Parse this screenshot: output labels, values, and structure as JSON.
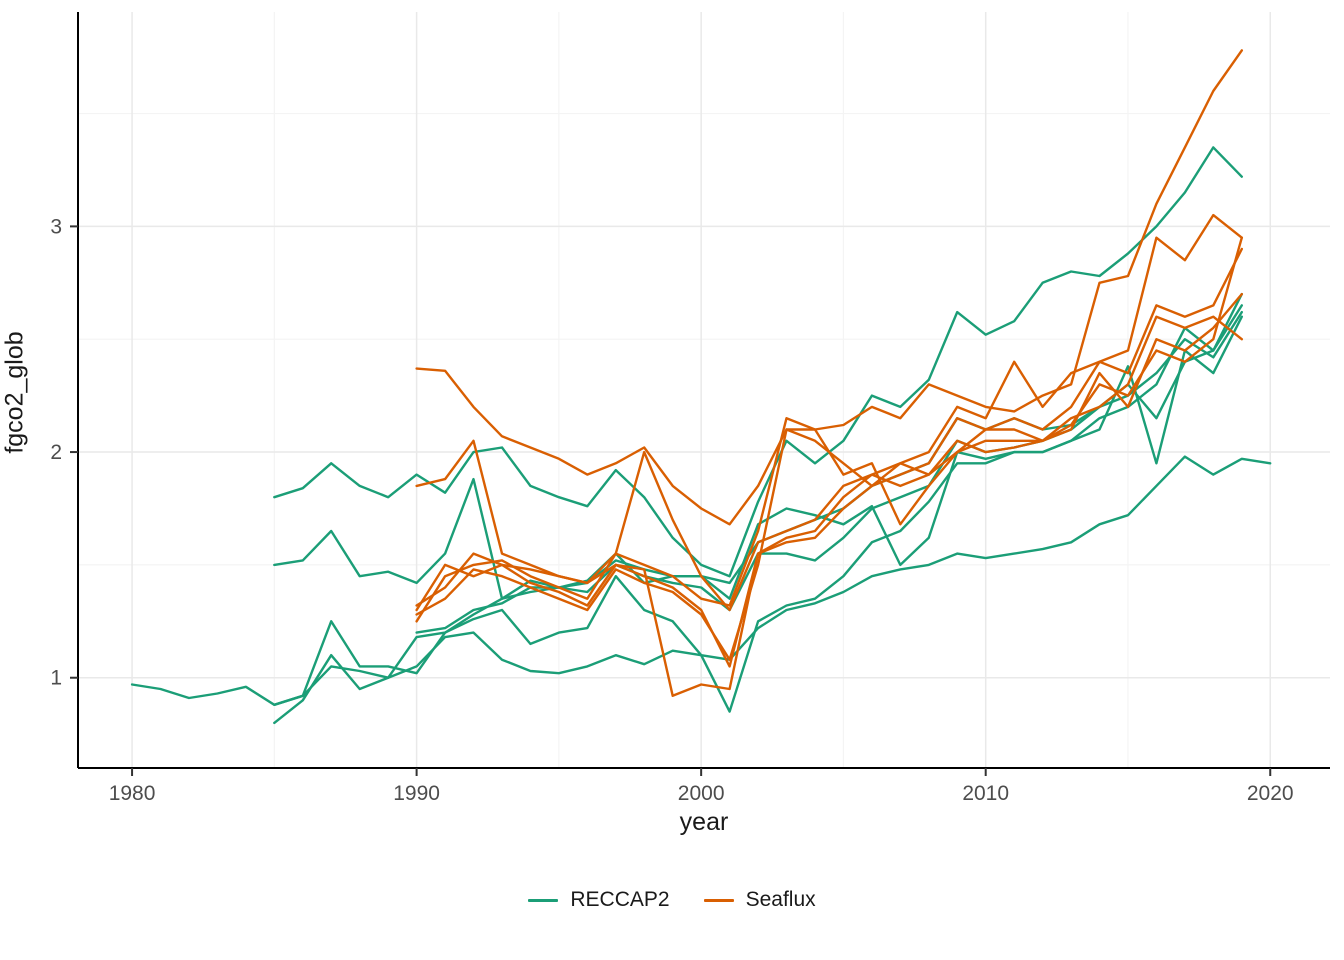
{
  "figure": {
    "title": "",
    "background": "#ffffff"
  },
  "colors": {
    "reccap2": "#1B9E77",
    "seaflux": "#D95F02",
    "grid_major": "#e9e9e9",
    "grid_minor": "#f4f4f4",
    "axis_line": "#000000",
    "tick_label": "#4d4d4d",
    "axis_title": "#1a1a1a"
  },
  "chart_data": {
    "type": "line",
    "title": "",
    "xlabel": "year",
    "ylabel": "fgco2_glob",
    "xlim": [
      1978.1,
      2022.1
    ],
    "ylim": [
      0.6,
      3.95
    ],
    "x_ticks": [
      1980,
      1990,
      2000,
      2010,
      2020
    ],
    "x_minor": [
      1985,
      1995,
      2005,
      2015
    ],
    "y_ticks": [
      1,
      2,
      3
    ],
    "y_minor": [
      1.5,
      2.5,
      3.5
    ],
    "grid": true,
    "legend_position": "bottom",
    "groups": [
      {
        "name": "RECCAP2",
        "color": "#1B9E77"
      },
      {
        "name": "Seaflux",
        "color": "#D95F02"
      }
    ],
    "series": [
      {
        "name": "reccap2-1",
        "group": "RECCAP2",
        "start_year": 1980,
        "values": [
          0.97,
          0.95,
          0.91,
          0.93,
          0.96,
          0.88,
          0.92,
          1.05,
          1.03,
          1.0,
          1.05,
          1.18,
          1.2,
          1.08,
          1.03,
          1.02,
          1.05,
          1.1,
          1.06,
          1.12,
          1.1,
          1.08,
          1.22,
          1.3,
          1.33,
          1.38,
          1.45,
          1.48,
          1.5,
          1.55,
          1.53,
          1.55,
          1.57,
          1.6,
          1.68,
          1.72,
          1.85,
          1.98,
          1.9,
          1.97,
          1.95
        ]
      },
      {
        "name": "reccap2-2",
        "group": "RECCAP2",
        "start_year": 1985,
        "values": [
          1.8,
          1.84,
          1.95,
          1.85,
          1.8,
          1.9,
          1.82,
          2.0,
          2.02,
          1.85,
          1.8,
          1.76,
          1.92,
          1.8,
          1.62,
          1.5,
          1.45,
          1.78,
          2.05,
          1.95,
          2.05,
          2.25,
          2.2,
          2.32,
          2.62,
          2.52,
          2.58,
          2.75,
          2.8,
          2.78,
          2.88,
          3.0,
          3.15,
          3.35,
          3.22
        ]
      },
      {
        "name": "reccap2-3",
        "group": "RECCAP2",
        "start_year": 1985,
        "values": [
          1.5,
          1.52,
          1.65,
          1.45,
          1.47,
          1.42,
          1.55,
          1.88,
          1.35,
          1.43,
          1.4,
          1.43,
          1.55,
          1.42,
          1.45,
          1.45,
          1.35,
          1.68,
          1.75,
          1.72,
          1.68,
          1.76,
          1.5,
          1.62,
          2.0,
          1.97,
          2.0,
          2.0,
          2.05,
          2.1,
          2.38,
          1.95,
          2.45,
          2.35,
          2.6
        ]
      },
      {
        "name": "reccap2-4",
        "group": "RECCAP2",
        "start_year": 1985,
        "values": [
          0.88,
          0.92,
          1.25,
          1.05,
          1.05,
          1.02,
          1.2,
          1.26,
          1.3,
          1.15,
          1.2,
          1.22,
          1.45,
          1.3,
          1.25,
          1.1,
          0.85,
          1.25,
          1.32,
          1.35,
          1.45,
          1.6,
          1.65,
          1.78,
          1.95,
          1.95,
          2.0,
          2.0,
          2.05,
          2.15,
          2.2,
          2.3,
          2.55,
          2.45,
          2.65
        ]
      },
      {
        "name": "reccap2-5",
        "group": "RECCAP2",
        "start_year": 1985,
        "values": [
          0.8,
          0.9,
          1.1,
          0.95,
          1.0,
          1.18,
          1.2,
          1.28,
          1.35,
          1.38,
          1.4,
          1.38,
          1.5,
          1.45,
          1.42,
          1.4,
          1.3,
          1.55,
          1.55,
          1.52,
          1.62,
          1.75,
          1.8,
          1.85,
          2.05,
          2.0,
          2.02,
          2.05,
          2.1,
          2.2,
          2.25,
          2.35,
          2.5,
          2.42,
          2.62
        ]
      },
      {
        "name": "reccap2-6",
        "group": "RECCAP2",
        "start_year": 1990,
        "values": [
          1.2,
          1.22,
          1.3,
          1.33,
          1.4,
          1.4,
          1.42,
          1.52,
          1.48,
          1.45,
          1.45,
          1.42,
          1.6,
          1.65,
          1.7,
          1.75,
          1.85,
          1.9,
          1.95,
          2.15,
          2.1,
          2.15,
          2.1,
          2.12,
          2.2,
          2.3,
          2.15,
          2.4,
          2.45,
          2.7
        ]
      },
      {
        "name": "seaflux-1",
        "group": "Seaflux",
        "start_year": 1990,
        "values": [
          2.37,
          2.36,
          2.2,
          2.07,
          2.02,
          1.97,
          1.9,
          1.95,
          2.02,
          1.85,
          1.75,
          1.68,
          1.85,
          2.1,
          2.1,
          2.12,
          2.2,
          2.15,
          2.3,
          2.25,
          2.2,
          2.18,
          2.25,
          2.3,
          2.75,
          2.78,
          3.1,
          3.35,
          3.6,
          3.78
        ]
      },
      {
        "name": "seaflux-2",
        "group": "Seaflux",
        "start_year": 1990,
        "values": [
          1.85,
          1.88,
          2.05,
          1.55,
          1.5,
          1.45,
          1.42,
          1.55,
          2.0,
          1.7,
          1.45,
          1.3,
          1.6,
          1.65,
          1.7,
          1.85,
          1.9,
          1.95,
          2.0,
          2.2,
          2.15,
          2.4,
          2.2,
          2.35,
          2.4,
          2.45,
          2.95,
          2.85,
          3.05,
          2.95
        ]
      },
      {
        "name": "seaflux-3",
        "group": "Seaflux",
        "start_year": 1990,
        "values": [
          1.3,
          1.5,
          1.45,
          1.5,
          1.48,
          1.45,
          1.42,
          1.5,
          1.48,
          0.92,
          0.97,
          0.95,
          1.55,
          1.6,
          1.62,
          1.75,
          1.85,
          1.95,
          1.9,
          2.0,
          2.05,
          2.05,
          2.05,
          2.15,
          2.2,
          2.3,
          2.6,
          2.55,
          2.6,
          2.5
        ]
      },
      {
        "name": "seaflux-4",
        "group": "Seaflux",
        "start_year": 1990,
        "values": [
          1.25,
          1.45,
          1.5,
          1.52,
          1.45,
          1.4,
          1.35,
          1.55,
          1.5,
          1.45,
          1.35,
          1.32,
          1.65,
          2.15,
          2.1,
          1.9,
          1.95,
          1.68,
          1.85,
          2.0,
          2.1,
          2.1,
          2.05,
          2.1,
          2.35,
          2.2,
          2.5,
          2.45,
          2.55,
          2.7
        ]
      },
      {
        "name": "seaflux-5",
        "group": "Seaflux",
        "start_year": 1990,
        "values": [
          1.32,
          1.4,
          1.55,
          1.5,
          1.42,
          1.38,
          1.32,
          1.5,
          1.45,
          1.4,
          1.3,
          1.05,
          1.55,
          1.62,
          1.65,
          1.8,
          1.9,
          1.85,
          1.9,
          2.05,
          2.0,
          2.02,
          2.05,
          2.12,
          2.3,
          2.25,
          2.45,
          2.4,
          2.5,
          2.95
        ]
      },
      {
        "name": "seaflux-6",
        "group": "Seaflux",
        "start_year": 1990,
        "values": [
          1.28,
          1.35,
          1.48,
          1.45,
          1.4,
          1.35,
          1.3,
          1.48,
          1.42,
          1.38,
          1.28,
          1.08,
          1.5,
          2.1,
          2.05,
          1.95,
          1.85,
          1.9,
          1.95,
          2.15,
          2.1,
          2.15,
          2.1,
          2.2,
          2.4,
          2.35,
          2.65,
          2.6,
          2.65,
          2.9
        ]
      }
    ]
  }
}
